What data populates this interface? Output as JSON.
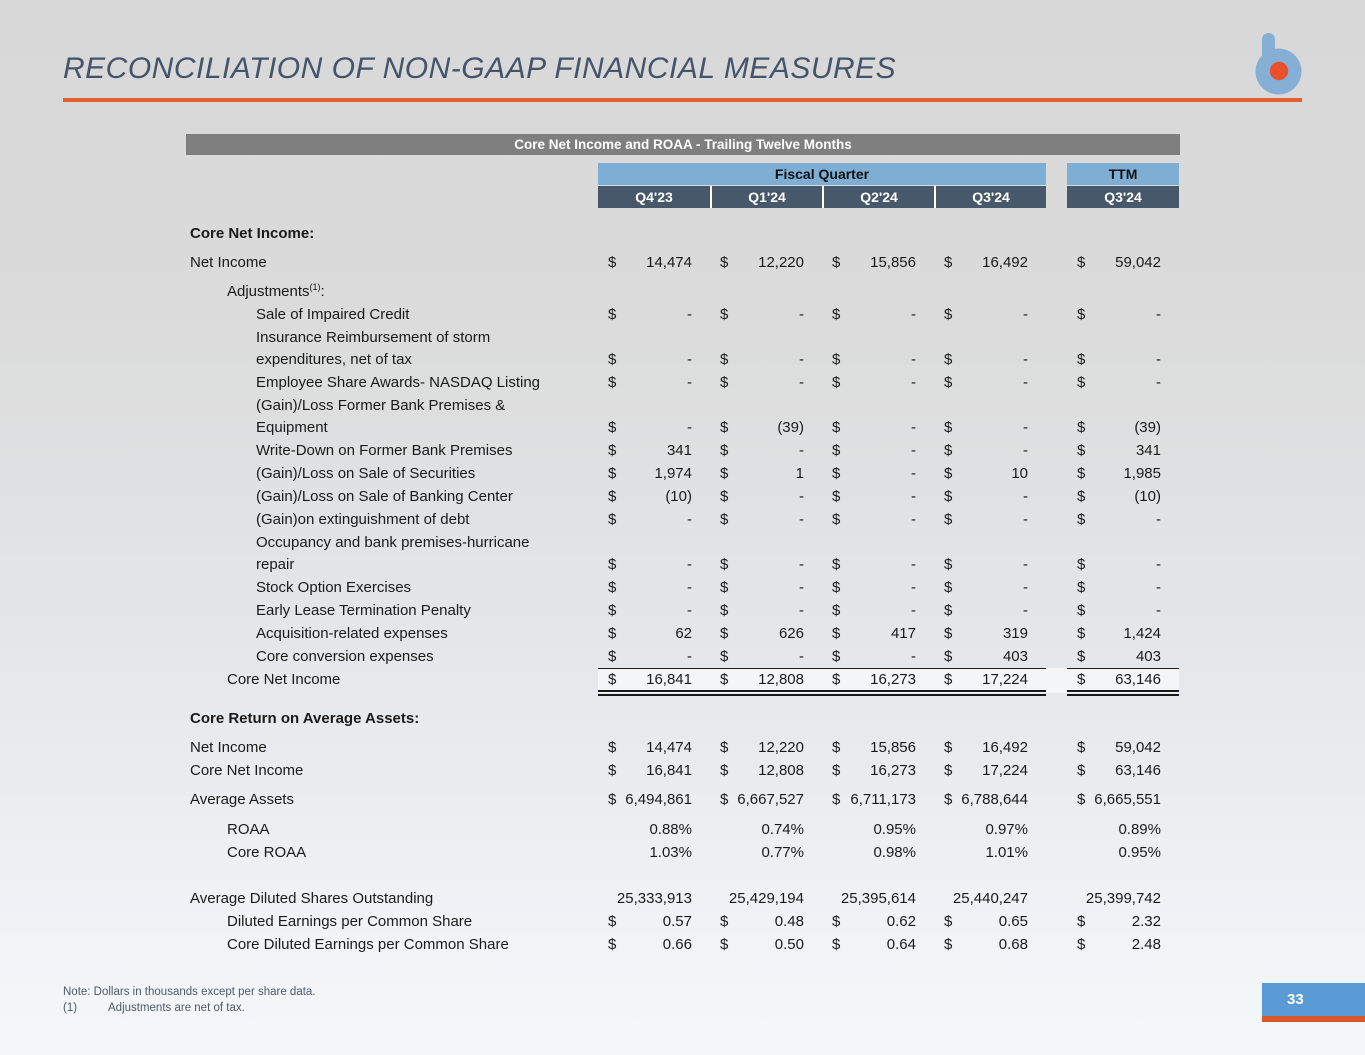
{
  "slide": {
    "title": "RECONCILIATION OF NON-GAAP FINANCIAL MEASURES",
    "page_number": "33",
    "accent_colors": {
      "title_text": "#44546A",
      "orange_rule": "#E2612E",
      "logo_blue": "#85AFD4",
      "logo_orange": "#E8512C",
      "page_box_blue": "#5B9BD5"
    }
  },
  "footer": {
    "note1": "Note: Dollars in thousands except per share data.",
    "note2_ref": "(1)",
    "note2_text": "Adjustments are net of tax."
  },
  "table": {
    "title": "Core Net Income and ROAA - Trailing Twelve Months",
    "col_group_label": "Fiscal Quarter",
    "ttm_label": "TTM",
    "quarter_headers": [
      "Q4'23",
      "Q1'24",
      "Q2'24",
      "Q3'24"
    ],
    "ttm_header": "Q3'24",
    "header_colors": {
      "band_blue": "#7EAED3",
      "cell_dark": "#47586A",
      "title_gray": "#7F7F7F"
    },
    "rows": [
      {
        "type": "section",
        "label": "Core Net Income:",
        "mt": 14
      },
      {
        "type": "data",
        "label": "Net Income",
        "indent": 0,
        "dollar": true,
        "mt": 6,
        "values": [
          "14,474",
          "12,220",
          "15,856",
          "16,492",
          "59,042"
        ]
      },
      {
        "type": "label",
        "label": "Adjustments",
        "sup": "(1)",
        "after": ":",
        "indent": 1,
        "mt": 2
      },
      {
        "type": "data",
        "label": "Sale of Impaired Credit",
        "indent": 2,
        "dollar": true,
        "values": [
          "-",
          "-",
          "-",
          "-",
          "-"
        ]
      },
      {
        "type": "data",
        "label": "Insurance Reimbursement of storm",
        "label2": "expenditures, net of tax",
        "indent": 2,
        "dollar": true,
        "values": [
          "-",
          "-",
          "-",
          "-",
          "-"
        ]
      },
      {
        "type": "data",
        "label": "Employee Share Awards- NASDAQ Listing",
        "indent": 2,
        "dollar": true,
        "values": [
          "-",
          "-",
          "-",
          "-",
          "-"
        ]
      },
      {
        "type": "data",
        "label": "(Gain)/Loss Former Bank Premises &",
        "label2": "Equipment",
        "indent": 2,
        "dollar": true,
        "values": [
          "-",
          "(39)",
          "-",
          "-",
          "(39)"
        ]
      },
      {
        "type": "data",
        "label": "Write-Down on Former Bank Premises",
        "indent": 2,
        "dollar": true,
        "values": [
          "341",
          "-",
          "-",
          "-",
          "341"
        ]
      },
      {
        "type": "data",
        "label": "(Gain)/Loss on Sale of Securities",
        "indent": 2,
        "dollar": true,
        "values": [
          "1,974",
          "1",
          "-",
          "10",
          "1,985"
        ]
      },
      {
        "type": "data",
        "label": "(Gain)/Loss on Sale of Banking Center",
        "indent": 2,
        "dollar": true,
        "values": [
          "(10)",
          "-",
          "-",
          "-",
          "(10)"
        ]
      },
      {
        "type": "data",
        "label": "(Gain)on extinguishment of debt",
        "indent": 2,
        "dollar": true,
        "values": [
          "-",
          "-",
          "-",
          "-",
          "-"
        ]
      },
      {
        "type": "data",
        "label": "Occupancy and bank premises-hurricane",
        "label2": "repair",
        "indent": 2,
        "dollar": true,
        "values": [
          "-",
          "-",
          "-",
          "-",
          "-"
        ]
      },
      {
        "type": "data",
        "label": "Stock Option Exercises",
        "indent": 2,
        "dollar": true,
        "values": [
          "-",
          "-",
          "-",
          "-",
          "-"
        ]
      },
      {
        "type": "data",
        "label": "Early Lease Termination Penalty",
        "indent": 2,
        "dollar": true,
        "values": [
          "-",
          "-",
          "-",
          "-",
          "-"
        ]
      },
      {
        "type": "data",
        "label": "Acquisition-related expenses",
        "indent": 2,
        "dollar": true,
        "values": [
          "62",
          "626",
          "417",
          "319",
          "1,424"
        ]
      },
      {
        "type": "data",
        "label": "Core conversion expenses",
        "indent": 2,
        "dollar": true,
        "rule": "single-bottom",
        "values": [
          "-",
          "-",
          "-",
          "403",
          "403"
        ]
      },
      {
        "type": "data",
        "label": "Core Net Income",
        "indent": 1,
        "dollar": true,
        "total": true,
        "rule": "double-bottom",
        "values": [
          "16,841",
          "12,808",
          "16,273",
          "17,224",
          "63,146"
        ]
      },
      {
        "type": "section",
        "label": "Core Return on Average Assets:",
        "mt": 16
      },
      {
        "type": "data",
        "label": "Net Income",
        "indent": 0,
        "dollar": true,
        "mt": 6,
        "values": [
          "14,474",
          "12,220",
          "15,856",
          "16,492",
          "59,042"
        ]
      },
      {
        "type": "data",
        "label": "Core Net Income",
        "indent": 0,
        "dollar": true,
        "values": [
          "16,841",
          "12,808",
          "16,273",
          "17,224",
          "63,146"
        ]
      },
      {
        "type": "data",
        "label": "Average Assets",
        "indent": 0,
        "dollar": true,
        "mt": 6,
        "values": [
          "6,494,861",
          "6,667,527",
          "6,711,173",
          "6,788,644",
          "6,665,551"
        ]
      },
      {
        "type": "data",
        "label": "ROAA",
        "indent": 1,
        "dollar": false,
        "mt": 7,
        "values": [
          "0.88%",
          "0.74%",
          "0.95%",
          "0.97%",
          "0.89%"
        ]
      },
      {
        "type": "data",
        "label": "Core ROAA",
        "indent": 1,
        "dollar": false,
        "values": [
          "1.03%",
          "0.77%",
          "0.98%",
          "1.01%",
          "0.95%"
        ]
      },
      {
        "type": "data",
        "label": "Average Diluted Shares Outstanding",
        "indent": 0,
        "dollar": false,
        "mt": 23,
        "values": [
          "25,333,913",
          "25,429,194",
          "25,395,614",
          "25,440,247",
          "25,399,742"
        ]
      },
      {
        "type": "data",
        "label": "Diluted Earnings per Common Share",
        "indent": 1,
        "dollar": true,
        "values": [
          "0.57",
          "0.48",
          "0.62",
          "0.65",
          "2.32"
        ]
      },
      {
        "type": "data",
        "label": "Core Diluted Earnings per Common Share",
        "indent": 1,
        "dollar": true,
        "values": [
          "0.66",
          "0.50",
          "0.64",
          "0.68",
          "2.48"
        ]
      }
    ]
  }
}
